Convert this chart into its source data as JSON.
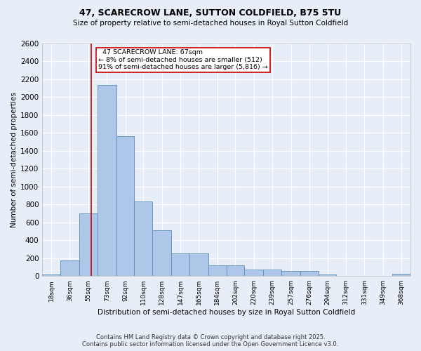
{
  "title": "47, SCARECROW LANE, SUTTON COLDFIELD, B75 5TU",
  "subtitle": "Size of property relative to semi-detached houses in Royal Sutton Coldfield",
  "xlabel": "Distribution of semi-detached houses by size in Royal Sutton Coldfield",
  "ylabel": "Number of semi-detached properties",
  "footer_line1": "Contains HM Land Registry data © Crown copyright and database right 2025.",
  "footer_line2": "Contains public sector information licensed under the Open Government Licence v3.0.",
  "bin_edges": [
    18,
    36,
    55,
    73,
    92,
    110,
    128,
    147,
    165,
    184,
    202,
    220,
    239,
    257,
    276,
    294,
    312,
    331,
    349,
    368,
    386
  ],
  "bar_heights": [
    15,
    175,
    700,
    2130,
    1560,
    830,
    510,
    250,
    250,
    120,
    120,
    70,
    70,
    55,
    55,
    20,
    5,
    5,
    5,
    25
  ],
  "bar_color": "#aec6e8",
  "bar_edge_color": "#5b8db8",
  "background_color": "#e8eef8",
  "grid_color": "#ffffff",
  "property_size": 67,
  "property_label": "47 SCARECROW LANE: 67sqm",
  "pct_smaller": 8,
  "count_smaller": 512,
  "pct_larger": 91,
  "count_larger": 5816,
  "annotation_box_color": "#cc0000",
  "vline_color": "#cc0000",
  "ylim": [
    0,
    2600
  ],
  "yticks": [
    0,
    200,
    400,
    600,
    800,
    1000,
    1200,
    1400,
    1600,
    1800,
    2000,
    2200,
    2400,
    2600
  ]
}
